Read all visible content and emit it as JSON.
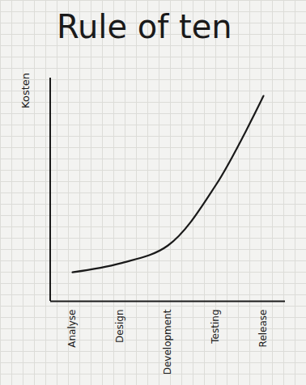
{
  "chart_data": {
    "type": "line",
    "title": "Rule of ten",
    "y_label": "Kosten",
    "categories": [
      "Analyse",
      "Design",
      "Development",
      "Testing",
      "Release"
    ],
    "values": [
      13,
      17,
      25,
      52,
      92
    ],
    "color": "#1a1a1a",
    "ylim": [
      0,
      100
    ],
    "tick_labels": "x",
    "grid": false
  }
}
